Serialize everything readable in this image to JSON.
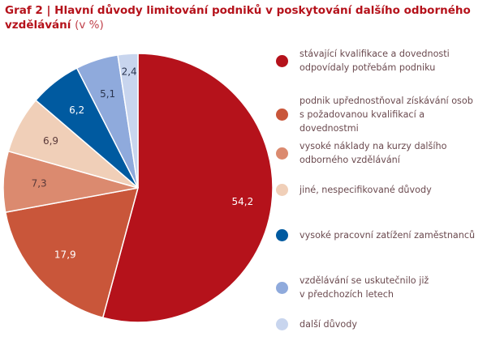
{
  "title": {
    "main": "Graf 2 | Hlavní důvody limitování podniků v poskytování dalšího odborného vzdělávání",
    "unit": "(v %)"
  },
  "chart_data": {
    "type": "pie",
    "start": "top",
    "direction": "clockwise",
    "slices": [
      {
        "label": "stávající kvalifikace a dovednosti\nodpovídaly potřebám podniku",
        "value": 54.2,
        "display": "54,2",
        "color": "#b5121b",
        "text_color": "#ffffff"
      },
      {
        "label": "podnik upřednostňoval získávání osob\ns požadovanou kvalifikací a dovednostmi",
        "value": 17.9,
        "display": "17,9",
        "color": "#c9563a",
        "text_color": "#ffffff"
      },
      {
        "label": "vysoké náklady na kurzy dalšího\nodborného vzdělávání",
        "value": 7.3,
        "display": "7,3",
        "color": "#db8a6f",
        "text_color": "#5a3a3a"
      },
      {
        "label": "jiné, nespecifikované důvody",
        "value": 6.9,
        "display": "6,9",
        "color": "#f0cfb8",
        "text_color": "#5a3a3a"
      },
      {
        "label": "vysoké pracovní zatížení zaměstnanců",
        "value": 6.2,
        "display": "6,2",
        "color": "#005aa0",
        "text_color": "#ffffff"
      },
      {
        "label": "vzdělávání se uskutečnilo již\nv předchozích letech",
        "value": 5.1,
        "display": "5,1",
        "color": "#8faadc",
        "text_color": "#2a3550"
      },
      {
        "label": "další důvody",
        "value": 2.4,
        "display": "2,4",
        "color": "#c8d5ee",
        "text_color": "#2a3550"
      }
    ]
  }
}
